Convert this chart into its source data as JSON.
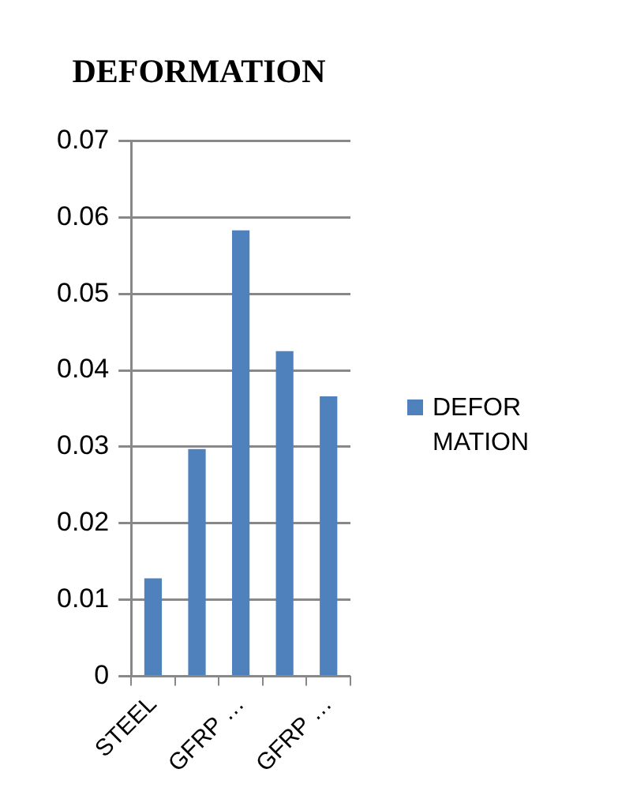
{
  "chart_data": {
    "type": "bar",
    "title": "DEFORMATION",
    "categories": [
      "STEEL",
      null,
      "GFRP …",
      null,
      "GFRP …"
    ],
    "series": [
      {
        "name": "DEFORMATION",
        "color": "#4f81bd",
        "values": [
          0.0128,
          0.0297,
          0.0583,
          0.0425,
          0.0366
        ]
      }
    ],
    "ylim": [
      0,
      0.07
    ],
    "yticks": [
      0,
      0.01,
      0.02,
      0.03,
      0.04,
      0.05,
      0.06,
      0.07
    ],
    "grid": "y",
    "legend": "right"
  }
}
